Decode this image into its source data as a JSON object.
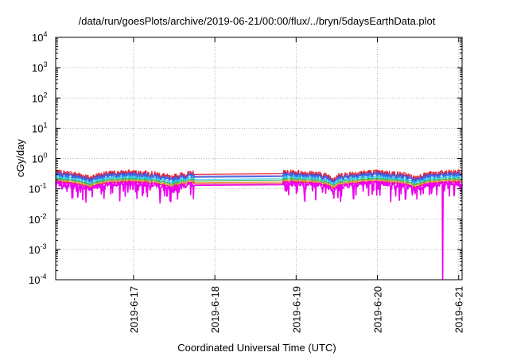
{
  "chart_data": {
    "type": "line",
    "title": "/data/run/goesPlots/archive/2019-06-21/00:00/flux/../bryn/5daysEarthData.plot",
    "xlabel": "Coordinated Universal Time (UTC)",
    "ylabel": "cGy/day",
    "yscale": "log",
    "ylim": [
      0.0001,
      10000
    ],
    "y_ticks": [
      {
        "value": 0.0001,
        "mant": "10",
        "exp": "-4"
      },
      {
        "value": 0.001,
        "mant": "10",
        "exp": "-3"
      },
      {
        "value": 0.01,
        "mant": "10",
        "exp": "-2"
      },
      {
        "value": 0.1,
        "mant": "10",
        "exp": "-1"
      },
      {
        "value": 1,
        "mant": "10",
        "exp": "0"
      },
      {
        "value": 10,
        "mant": "10",
        "exp": "1"
      },
      {
        "value": 100,
        "mant": "10",
        "exp": "2"
      },
      {
        "value": 1000,
        "mant": "10",
        "exp": "3"
      },
      {
        "value": 10000,
        "mant": "10",
        "exp": "4"
      }
    ],
    "xlim": [
      "2019-06-16 01:00",
      "2019-06-21 01:00"
    ],
    "x_ticks": [
      "2019-6-17",
      "2019-6-18",
      "2019-6-19",
      "2019-6-20",
      "2019-6-21"
    ],
    "x_tick_values": [
      "2019-06-17",
      "2019-06-18",
      "2019-06-19",
      "2019-06-20",
      "2019-06-21"
    ],
    "grid": true,
    "data_gap": [
      "2019-06-17 18:00",
      "2019-06-18 20:00"
    ],
    "dropout": [
      "2019-06-20 19:10",
      "2019-06-20 19:20"
    ],
    "dropout_series": "magenta",
    "series": [
      {
        "color": "#e8232b",
        "base": 0.3
      },
      {
        "color": "#6a3fc8",
        "base": 0.26
      },
      {
        "color": "#2f6fe8",
        "base": 0.24
      },
      {
        "color": "#2ec8e8",
        "base": 0.205
      },
      {
        "color": "#2fae5a",
        "base": 0.18
      },
      {
        "color": "#e89a2a",
        "base": 0.16
      },
      {
        "color": "#e8234a",
        "base": 0.145
      },
      {
        "color": "#ee00ee",
        "base": 0.13
      }
    ]
  }
}
